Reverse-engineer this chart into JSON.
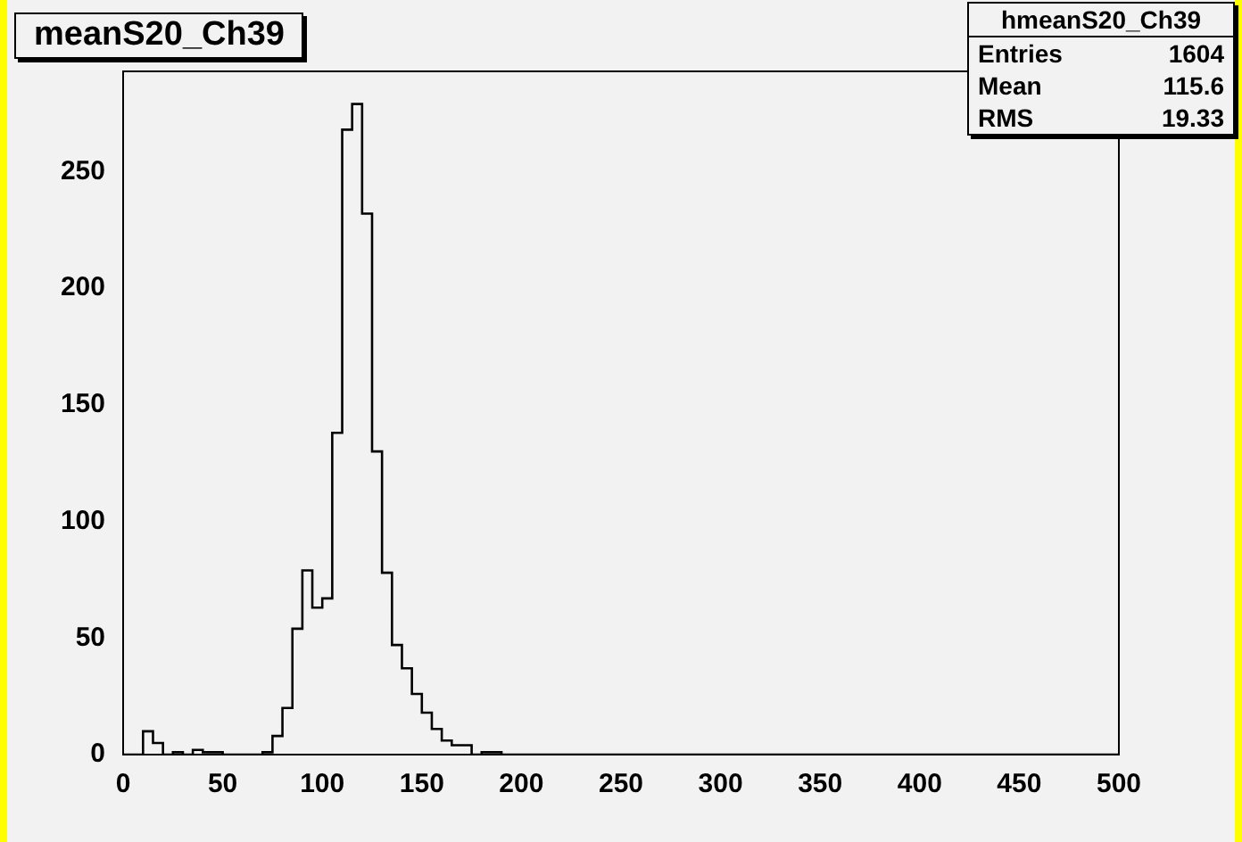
{
  "chart_data": {
    "type": "histogram",
    "title": "meanS20_Ch39",
    "bins": [
      0,
      5,
      10,
      15,
      20,
      25,
      30,
      35,
      40,
      45,
      50,
      55,
      60,
      65,
      70,
      75,
      80,
      85,
      90,
      95,
      100,
      105,
      110,
      115,
      120,
      125,
      130,
      135,
      140,
      145,
      150,
      155,
      160,
      165,
      170,
      175,
      180,
      185,
      190,
      195,
      200,
      205,
      210,
      215,
      220,
      225,
      230,
      235,
      240,
      245,
      250,
      255,
      260,
      265,
      270,
      275,
      280,
      285,
      290,
      295,
      300,
      305,
      310,
      315,
      320,
      325,
      330,
      335,
      340,
      345,
      350,
      355,
      360,
      365,
      370,
      375,
      380,
      385,
      390,
      395,
      400,
      405,
      410,
      415,
      420,
      425,
      430,
      435,
      440,
      445,
      450,
      455,
      460,
      465,
      470,
      475,
      480,
      485,
      490,
      495,
      500
    ],
    "values": [
      0,
      0,
      10,
      5,
      0,
      1,
      0,
      2,
      1,
      1,
      0,
      0,
      0,
      0,
      1,
      8,
      20,
      54,
      79,
      63,
      67,
      138,
      268,
      279,
      232,
      130,
      78,
      47,
      37,
      26,
      18,
      11,
      6,
      4,
      4,
      0,
      1,
      1,
      0,
      0,
      0,
      0,
      0,
      0,
      0,
      0,
      0,
      0,
      0,
      0,
      0,
      0,
      0,
      0,
      0,
      0,
      0,
      0,
      0,
      0,
      0,
      0,
      0,
      0,
      0,
      0,
      0,
      0,
      0,
      0,
      0,
      0,
      0,
      0,
      0,
      0,
      0,
      0,
      0,
      0,
      0,
      0,
      0,
      0,
      0,
      0,
      0,
      0,
      0,
      0,
      0,
      0,
      0,
      0,
      0,
      0,
      0,
      0,
      0,
      0
    ],
    "color": "#000000",
    "xlim": [
      0,
      500
    ],
    "xticks": [
      0,
      50,
      100,
      150,
      200,
      250,
      300,
      350,
      400,
      450,
      500
    ],
    "ylim": [
      0,
      293
    ],
    "yticks": [
      0,
      50,
      100,
      150,
      200,
      250
    ],
    "annotations": [
      "hmeanS20_Ch39",
      "Entries 1604",
      "Mean 115.6",
      "RMS 19.33"
    ]
  }
}
